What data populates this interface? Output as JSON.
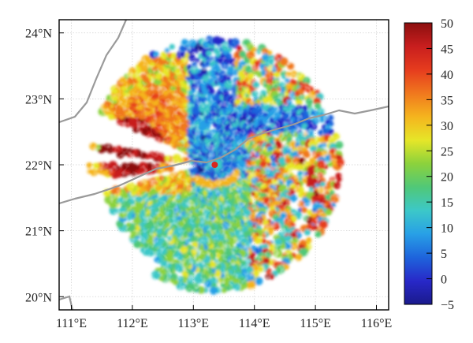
{
  "map": {
    "x_axis": {
      "range": [
        110.8,
        116.2
      ],
      "ticks": [
        {
          "value": 111,
          "label": "111°E"
        },
        {
          "value": 112,
          "label": "112°E"
        },
        {
          "value": 113,
          "label": "113°E"
        },
        {
          "value": 114,
          "label": "114°E"
        },
        {
          "value": 115,
          "label": "115°E"
        },
        {
          "value": 116,
          "label": "116°E"
        }
      ]
    },
    "y_axis": {
      "range": [
        19.8,
        24.2
      ],
      "ticks": [
        {
          "value": 20,
          "label": "20°N"
        },
        {
          "value": 21,
          "label": "21°N"
        },
        {
          "value": 22,
          "label": "22°N"
        },
        {
          "value": 23,
          "label": "23°N"
        },
        {
          "value": 24,
          "label": "24°N"
        }
      ]
    },
    "radar_site": {
      "lon": 113.35,
      "lat": 22.0
    },
    "radar_radius_deg": 2.05,
    "grid": true
  },
  "colorbar": {
    "min": -5,
    "max": 50,
    "ticks": [
      {
        "value": 50,
        "label": "50"
      },
      {
        "value": 45,
        "label": "45"
      },
      {
        "value": 40,
        "label": "40"
      },
      {
        "value": 35,
        "label": "35"
      },
      {
        "value": 30,
        "label": "30"
      },
      {
        "value": 25,
        "label": "25"
      },
      {
        "value": 20,
        "label": "20"
      },
      {
        "value": 15,
        "label": "15"
      },
      {
        "value": 10,
        "label": "10"
      },
      {
        "value": 5,
        "label": "5"
      },
      {
        "value": 0,
        "label": "0"
      },
      {
        "value": -5,
        "label": "−5"
      }
    ],
    "colors": [
      "#1a1a8c",
      "#2828c8",
      "#1e64dc",
      "#28a0e6",
      "#3cc8c8",
      "#50c878",
      "#8cd23c",
      "#e6e628",
      "#f5b41e",
      "#f0781e",
      "#e63c1e",
      "#c81e1e",
      "#8c0f0f"
    ]
  }
}
